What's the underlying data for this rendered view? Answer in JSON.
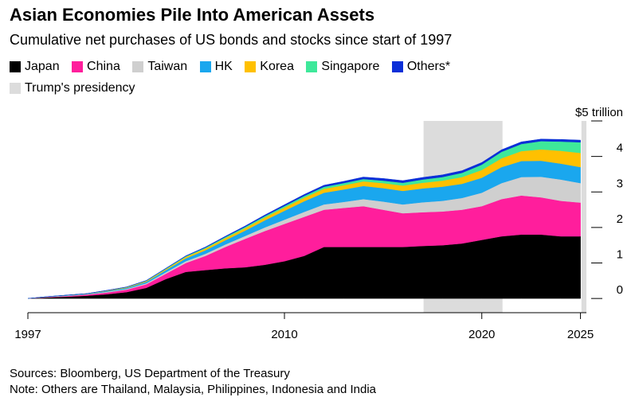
{
  "title": "Asian Economies Pile Into American Assets",
  "subtitle": "Cumulative net purchases of US bonds and stocks since start of 1997",
  "legend": {
    "items": [
      {
        "label": "Japan",
        "color": "#000000"
      },
      {
        "label": "China",
        "color": "#ff1e9c"
      },
      {
        "label": "Taiwan",
        "color": "#cfcfcf"
      },
      {
        "label": "HK",
        "color": "#1aa7ee"
      },
      {
        "label": "Korea",
        "color": "#ffc000"
      },
      {
        "label": "Singapore",
        "color": "#3ee89a"
      },
      {
        "label": "Others*",
        "color": "#0b2fd8"
      }
    ],
    "shading": {
      "label": "Trump's presidency",
      "color": "#dcdcdc"
    }
  },
  "sources": "Sources: Bloomberg, US Department of the Treasury",
  "note": "Note: Others are Thailand, Malaysia, Philippines, Indonesia and India",
  "chart_data": {
    "type": "area",
    "stacked": true,
    "x": [
      1997,
      1998,
      1999,
      2000,
      2001,
      2002,
      2003,
      2004,
      2005,
      2006,
      2007,
      2008,
      2009,
      2010,
      2011,
      2012,
      2013,
      2014,
      2015,
      2016,
      2017,
      2018,
      2019,
      2020,
      2021,
      2022,
      2023,
      2024,
      2025
    ],
    "series": [
      {
        "name": "Japan",
        "color": "#000000",
        "values": [
          0,
          0.03,
          0.05,
          0.08,
          0.12,
          0.18,
          0.3,
          0.55,
          0.75,
          0.8,
          0.85,
          0.88,
          0.95,
          1.05,
          1.2,
          1.45,
          1.45,
          1.45,
          1.45,
          1.45,
          1.48,
          1.5,
          1.55,
          1.65,
          1.75,
          1.8,
          1.8,
          1.75,
          1.75
        ]
      },
      {
        "name": "China",
        "color": "#ff1e9c",
        "values": [
          0,
          0.01,
          0.02,
          0.03,
          0.05,
          0.07,
          0.1,
          0.15,
          0.25,
          0.4,
          0.6,
          0.8,
          0.95,
          1.05,
          1.1,
          1.05,
          1.1,
          1.15,
          1.05,
          0.95,
          0.95,
          0.95,
          0.95,
          0.95,
          1.05,
          1.1,
          1.05,
          1.0,
          0.95
        ]
      },
      {
        "name": "Taiwan",
        "color": "#cfcfcf",
        "values": [
          0,
          0.005,
          0.01,
          0.01,
          0.02,
          0.02,
          0.03,
          0.04,
          0.05,
          0.06,
          0.07,
          0.08,
          0.1,
          0.12,
          0.14,
          0.15,
          0.17,
          0.2,
          0.23,
          0.25,
          0.28,
          0.3,
          0.33,
          0.38,
          0.45,
          0.52,
          0.58,
          0.6,
          0.55
        ]
      },
      {
        "name": "HK",
        "color": "#1aa7ee",
        "values": [
          0,
          0.005,
          0.01,
          0.01,
          0.02,
          0.03,
          0.04,
          0.06,
          0.08,
          0.1,
          0.12,
          0.15,
          0.2,
          0.25,
          0.3,
          0.33,
          0.35,
          0.37,
          0.38,
          0.38,
          0.39,
          0.4,
          0.4,
          0.42,
          0.45,
          0.45,
          0.45,
          0.45,
          0.45
        ]
      },
      {
        "name": "Korea",
        "color": "#ffc000",
        "values": [
          0,
          0.002,
          0.004,
          0.005,
          0.01,
          0.015,
          0.02,
          0.03,
          0.04,
          0.05,
          0.06,
          0.07,
          0.08,
          0.09,
          0.1,
          0.11,
          0.12,
          0.13,
          0.14,
          0.15,
          0.16,
          0.17,
          0.19,
          0.22,
          0.25,
          0.28,
          0.32,
          0.36,
          0.4
        ]
      },
      {
        "name": "Singapore",
        "color": "#3ee89a",
        "values": [
          0,
          0.001,
          0.002,
          0.003,
          0.005,
          0.007,
          0.01,
          0.015,
          0.02,
          0.025,
          0.03,
          0.035,
          0.04,
          0.045,
          0.05,
          0.055,
          0.06,
          0.065,
          0.07,
          0.08,
          0.09,
          0.1,
          0.12,
          0.15,
          0.18,
          0.2,
          0.23,
          0.26,
          0.3
        ]
      },
      {
        "name": "Others*",
        "color": "#0b2fd8",
        "values": [
          0,
          0.001,
          0.002,
          0.003,
          0.004,
          0.005,
          0.007,
          0.01,
          0.013,
          0.016,
          0.02,
          0.025,
          0.03,
          0.035,
          0.04,
          0.045,
          0.05,
          0.055,
          0.06,
          0.06,
          0.06,
          0.06,
          0.06,
          0.06,
          0.06,
          0.06,
          0.06,
          0.06,
          0.06
        ]
      }
    ],
    "shaded_ranges": [
      [
        2017.05,
        2021.05
      ],
      [
        2025.05,
        2025.3
      ]
    ],
    "xlim": [
      1997,
      2025.3
    ],
    "ylim": [
      -0.4,
      5
    ],
    "x_ticks": [
      {
        "value": 1997,
        "label": "1997"
      },
      {
        "value": 2010,
        "label": "2010"
      },
      {
        "value": 2020,
        "label": "2020"
      },
      {
        "value": 2025,
        "label": "2025"
      }
    ],
    "y_ticks": [
      {
        "value": 0,
        "label": "0"
      },
      {
        "value": 1,
        "label": "1"
      },
      {
        "value": 2,
        "label": "2"
      },
      {
        "value": 3,
        "label": "3"
      },
      {
        "value": 4,
        "label": "4"
      }
    ],
    "y_unit_label": "$5 trillion",
    "grid": false
  }
}
